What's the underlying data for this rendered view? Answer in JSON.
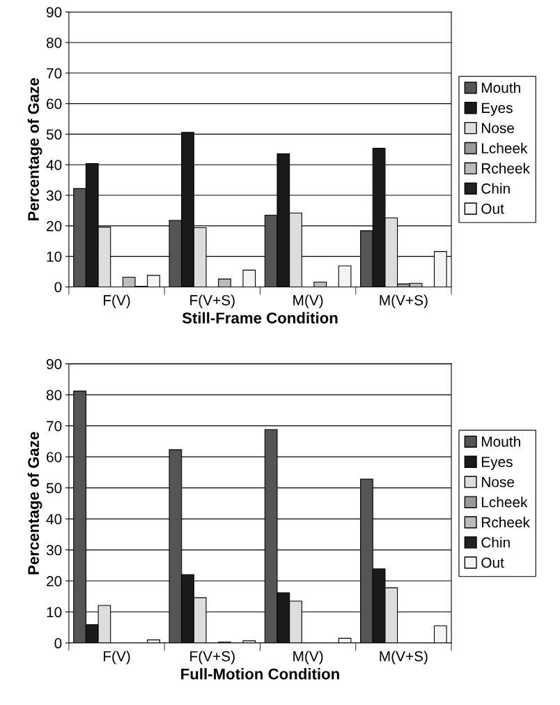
{
  "chart_data": [
    {
      "type": "bar",
      "xlabel": "Still-Frame Condition",
      "ylabel": "Percentage of Gaze",
      "categories": [
        "F(V)",
        "F(V+S)",
        "M(V)",
        "M(V+S)"
      ],
      "ylim": [
        0,
        90
      ],
      "yticks": [
        0,
        10,
        20,
        30,
        40,
        50,
        60,
        70,
        80,
        90
      ],
      "grid": "y",
      "legend": "right",
      "series": [
        {
          "name": "Mouth",
          "color": "#555555",
          "values": [
            32.2,
            21.8,
            23.5,
            18.4
          ]
        },
        {
          "name": "Eyes",
          "color": "#1a1a1a",
          "values": [
            40.4,
            50.6,
            43.6,
            45.4
          ]
        },
        {
          "name": "Nose",
          "color": "#dddddd",
          "values": [
            19.6,
            19.4,
            24.2,
            22.6
          ]
        },
        {
          "name": "Lcheek",
          "color": "#999999",
          "values": [
            null,
            0,
            null,
            1.0
          ]
        },
        {
          "name": "Rcheek",
          "color": "#bbbbbb",
          "values": [
            3.2,
            2.6,
            1.6,
            1.2
          ]
        },
        {
          "name": "Chin",
          "color": "#222222",
          "values": [
            0.2,
            0,
            0,
            0
          ]
        },
        {
          "name": "Out",
          "color": "#f4f4f4",
          "values": [
            3.8,
            5.5,
            6.9,
            11.6
          ]
        }
      ]
    },
    {
      "type": "bar",
      "xlabel": "Full-Motion Condition",
      "ylabel": "Percentage of Gaze",
      "categories": [
        "F(V)",
        "F(V+S)",
        "M(V)",
        "M(V+S)"
      ],
      "ylim": [
        0,
        90
      ],
      "yticks": [
        0,
        10,
        20,
        30,
        40,
        50,
        60,
        70,
        80,
        90
      ],
      "grid": "y",
      "legend": "right",
      "series": [
        {
          "name": "Mouth",
          "color": "#555555",
          "values": [
            81.2,
            62.3,
            68.8,
            52.8
          ]
        },
        {
          "name": "Eyes",
          "color": "#1a1a1a",
          "values": [
            5.9,
            22.0,
            16.2,
            23.9
          ]
        },
        {
          "name": "Nose",
          "color": "#dddddd",
          "values": [
            12.1,
            14.6,
            13.5,
            17.8
          ]
        },
        {
          "name": "Lcheek",
          "color": "#999999",
          "values": [
            0,
            0,
            0,
            0
          ]
        },
        {
          "name": "Rcheek",
          "color": "#bbbbbb",
          "values": [
            0,
            0.3,
            0,
            0
          ]
        },
        {
          "name": "Chin",
          "color": "#222222",
          "values": [
            0,
            0,
            0,
            0
          ]
        },
        {
          "name": "Out",
          "color": "#f4f4f4",
          "values": [
            1.0,
            0.7,
            1.5,
            5.5
          ]
        }
      ]
    }
  ]
}
